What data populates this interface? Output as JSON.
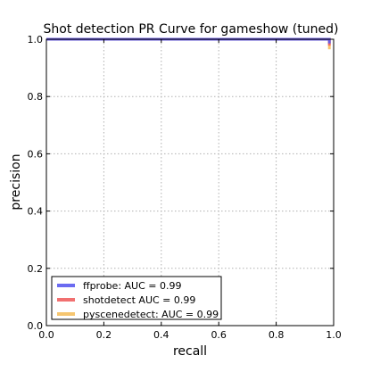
{
  "chart_data": {
    "type": "line",
    "title": "Shot detection PR Curve for gameshow (tuned)",
    "xlabel": "recall",
    "ylabel": "precision",
    "xlim": [
      0.0,
      1.0
    ],
    "ylim": [
      0.0,
      1.0
    ],
    "x_ticks": [
      "0.0",
      "0.2",
      "0.4",
      "0.6",
      "0.8",
      "1.0"
    ],
    "y_ticks": [
      "0.0",
      "0.2",
      "0.4",
      "0.6",
      "0.8",
      "1.0"
    ],
    "grid": true,
    "legend_position": "lower-left",
    "legend": [
      "ffprobe: AUC = 0.99",
      "shotdetect AUC = 0.99",
      "pyscenedetect: AUC = 0.99"
    ],
    "series": [
      {
        "color": "#5b5bf0",
        "x": [
          0.0,
          0.985,
          0.985
        ],
        "y": [
          1.0,
          1.0,
          0.985
        ]
      },
      {
        "color": "#f06060",
        "x": [
          0.0,
          0.985,
          0.985
        ],
        "y": [
          1.0,
          1.0,
          0.978
        ]
      },
      {
        "color": "#f5c060",
        "x": [
          0.0,
          0.985,
          0.985
        ],
        "y": [
          1.0,
          1.0,
          0.965
        ]
      }
    ]
  }
}
